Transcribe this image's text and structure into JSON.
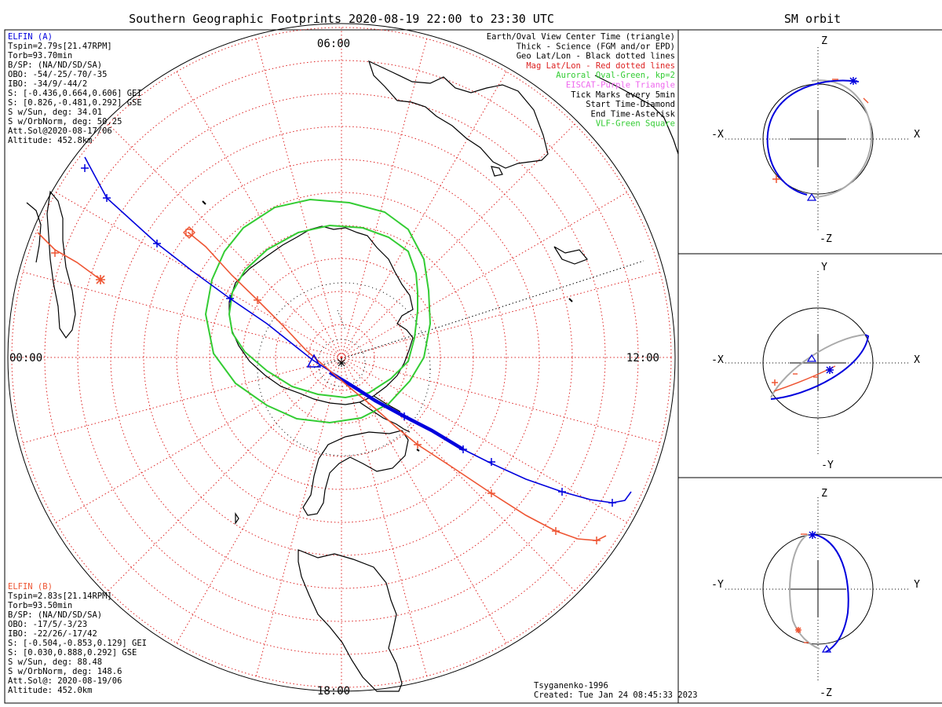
{
  "main_title": "Southern Geographic Footprints 2020-08-19 22:00 to 23:30 UTC",
  "sm_title": "SM orbit",
  "colors": {
    "elfin_a": "#0000dd",
    "elfin_b": "#ee5533",
    "oval": "#33cc33",
    "mag_grid": "#dd2222",
    "geo_grid": "#000000",
    "orbit_other": "#aaaaaa",
    "eiscat": "#ee66ee"
  },
  "clock_labels": {
    "top": "06:00",
    "left": "00:00",
    "right": "12:00",
    "bottom": "18:00"
  },
  "elfin_a": {
    "title": "ELFIN (A)",
    "lines": [
      "Tspin=2.79s[21.47RPM]",
      "Torb=93.70min",
      "B/SP: (NA/ND/SD/SA)",
      "OBO: -54/-25/-70/-35",
      "IBO: -34/9/-44/2",
      "S: [-0.436,0.664,0.606] GEI",
      "S: [0.826,-0.481,0.292] GSE",
      "S w/Sun, deg: 34.01",
      "S w/OrbNorm, deg: 50.25",
      "Att.Sol@2020-08-17/06",
      "Altitude: 452.8km"
    ]
  },
  "elfin_b": {
    "title": "ELFIN (B)",
    "lines": [
      "Tspin=2.83s[21.14RPM]",
      "Torb=93.50min",
      "B/SP: (NA/ND/SD/SA)",
      "OBO: -17/5/-3/23",
      "IBO: -22/26/-17/42",
      "S: [-0.504,-0.853,0.129] GEI",
      "S: [0.030,0.888,0.292] GSE",
      "S w/Sun, deg: 88.48",
      "S w/OrbNorm, deg: 148.6",
      "Att.Sol@: 2020-08-19/06",
      "Altitude: 452.0km"
    ]
  },
  "legend": [
    {
      "text": "Earth/Oval View Center Time (triangle)",
      "color": "#000000"
    },
    {
      "text": "Thick - Science (FGM and/or EPD)",
      "color": "#000000"
    },
    {
      "text": "Geo Lat/Lon - Black dotted lines",
      "color": "#000000"
    },
    {
      "text": "Mag Lat/Lon - Red dotted lines",
      "color": "#dd2222"
    },
    {
      "text": "Auroral Oval-Green, kp=2",
      "color": "#33cc33"
    },
    {
      "text": "EISCAT-Purple Triangle",
      "color": "#ee66ee"
    },
    {
      "text": "Tick Marks every 5min",
      "color": "#000000"
    },
    {
      "text": "Start Time-Diamond",
      "color": "#000000"
    },
    {
      "text": "End Time-Asterisk",
      "color": "#000000"
    },
    {
      "text": "VLF-Green Square",
      "color": "#33cc33"
    }
  ],
  "footer": {
    "model": "Tsyganenko-1996",
    "created": "Created: Tue Jan 24 08:45:33 2023"
  },
  "sm_panels": [
    {
      "top": "Z",
      "bottom": "-Z",
      "left": "-X",
      "right": "X"
    },
    {
      "top": "Y",
      "bottom": "-Y",
      "left": "-X",
      "right": "X"
    },
    {
      "top": "Z",
      "bottom": "-Z",
      "left": "-Y",
      "right": "Y"
    }
  ]
}
